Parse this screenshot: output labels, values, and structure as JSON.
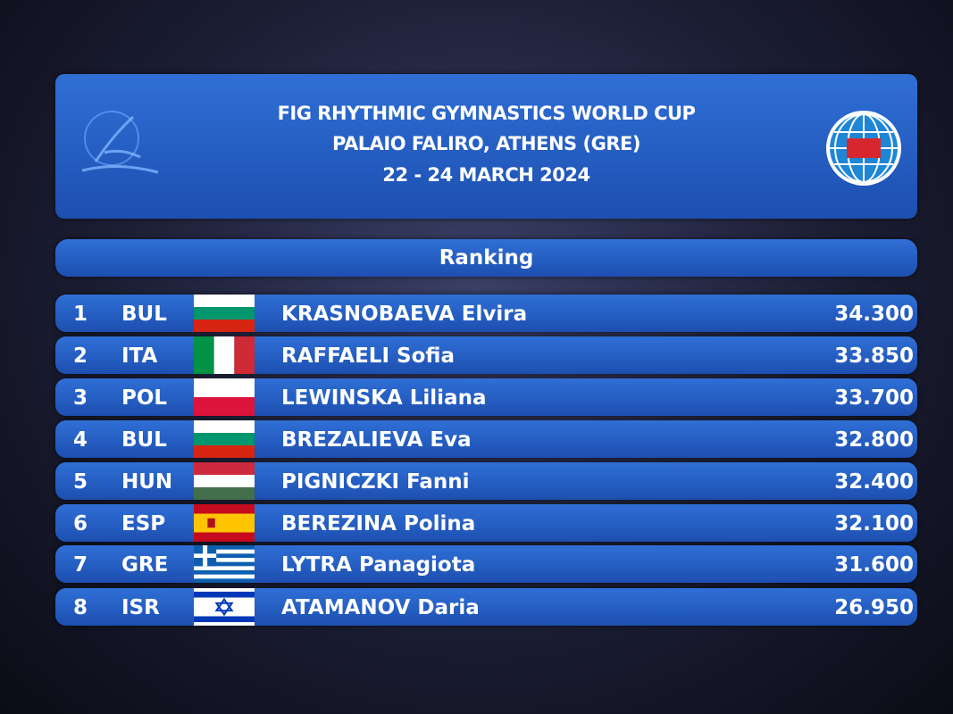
{
  "header": {
    "title_lines": [
      "FIG RHYTHMIC GYMNASTICS WORLD CUP",
      "PALAIO FALIRO, ATHENS (GRE)",
      "22 - 24 MARCH 2024"
    ]
  },
  "ranking_label": "Ranking",
  "table": {
    "rows": [
      [
        "1",
        "BUL",
        "KRASNOBAEVA Elvira",
        "34.300"
      ],
      [
        "2",
        "ITA",
        "RAFFAELI Sofia",
        "33.850"
      ],
      [
        "3",
        "POL",
        "LEWINSKA Liliana",
        "33.700"
      ],
      [
        "4",
        "BUL",
        "BREZALIEVA Eva",
        "32.800"
      ],
      [
        "5",
        "HUN",
        "PIGNICZKI Fanni",
        "32.400"
      ],
      [
        "6",
        "ESP",
        "BEREZINA Polina",
        "32.100"
      ],
      [
        "7",
        "GRE",
        "LYTRA Panagiota",
        "31.600"
      ],
      [
        "8",
        "ISR",
        "ATAMANOV Daria",
        "26.950"
      ]
    ]
  }
}
